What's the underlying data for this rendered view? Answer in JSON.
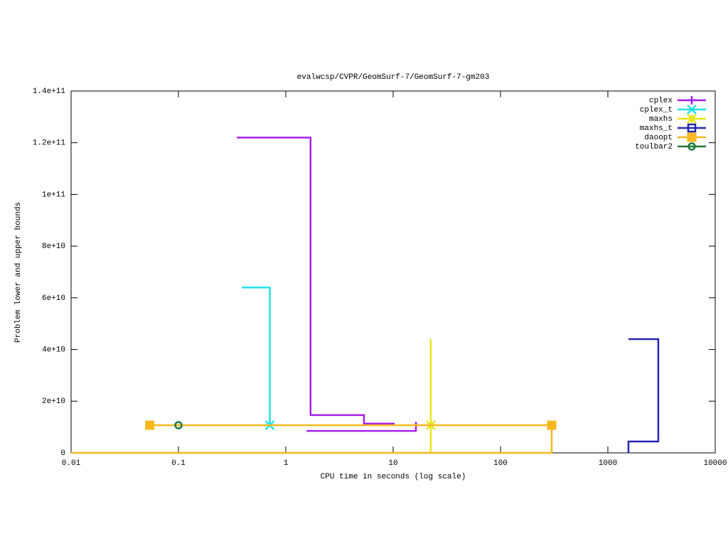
{
  "chart_data": {
    "type": "line",
    "title": "evalwcsp/CVPR/GeomSurf-7/GeomSurf-7-gm203",
    "x_label": "CPU time in seconds (log scale)",
    "y_label": "Problem lower and upper bounds",
    "x_log": true,
    "xlim": [
      0.01,
      10000
    ],
    "xticks": [
      0.01,
      0.1,
      1,
      10,
      100,
      1000,
      10000
    ],
    "ylim": [
      0,
      140000000000
    ],
    "yticks": [
      {
        "value": 0,
        "label": "0"
      },
      {
        "value": 20000000000,
        "label": "2e+10"
      },
      {
        "value": 40000000000,
        "label": "4e+10"
      },
      {
        "value": 60000000000,
        "label": "6e+10"
      },
      {
        "value": 80000000000,
        "label": "8e+10"
      },
      {
        "value": 100000000000,
        "label": "1e+11"
      },
      {
        "value": 120000000000,
        "label": "1.2e+11"
      },
      {
        "value": 140000000000,
        "label": "1.4e+11"
      }
    ],
    "legend": "top-right",
    "series": [
      {
        "name": "cplex",
        "color": "#a521e8",
        "marker": "plus",
        "x": [
          0.35,
          1.7,
          1.7,
          5.35,
          5.35,
          10.3,
          null,
          1.56,
          16.3,
          16.3
        ],
        "values": [
          122000000000,
          122000000000,
          14600000000,
          14600000000,
          11300000000,
          11300000000,
          null,
          8500000000,
          8500000000,
          12000000000
        ],
        "marker_x": [],
        "marker_values": []
      },
      {
        "name": "cplex_t",
        "color": "#22e0e6",
        "marker": "cross",
        "x": [
          0.39,
          0.71,
          0.71
        ],
        "values": [
          64000000000,
          64000000000,
          10700000000
        ],
        "marker_x": [
          0.71
        ],
        "marker_values": [
          10700000000
        ]
      },
      {
        "name": "maxhs",
        "color": "#e6e61a",
        "marker": "star",
        "x": [
          22.4,
          22.4
        ],
        "values": [
          44000000000,
          0
        ],
        "marker_x": [
          22.4
        ],
        "marker_values": [
          10700000000
        ]
      },
      {
        "name": "maxhs_t",
        "color": "#2626b0",
        "marker": "open-square",
        "x": [
          1556,
          1556,
          2950,
          2950,
          1556
        ],
        "values": [
          0,
          4400000000,
          4400000000,
          44000000000,
          44000000000
        ],
        "marker_x": [],
        "marker_values": []
      },
      {
        "name": "daoopt",
        "color": "#f8b820",
        "marker": "square",
        "x": [
          0.054,
          300,
          300,
          0.01
        ],
        "values": [
          10700000000,
          10700000000,
          0,
          0
        ],
        "marker_x": [
          0.054,
          300
        ],
        "marker_values": [
          10700000000,
          10700000000
        ]
      },
      {
        "name": "toulbar2",
        "color": "#1a7a3a",
        "marker": "circle",
        "x": [
          0.1
        ],
        "values": [
          10700000000
        ],
        "marker_x": [
          0.1
        ],
        "marker_values": [
          10700000000
        ]
      }
    ]
  }
}
